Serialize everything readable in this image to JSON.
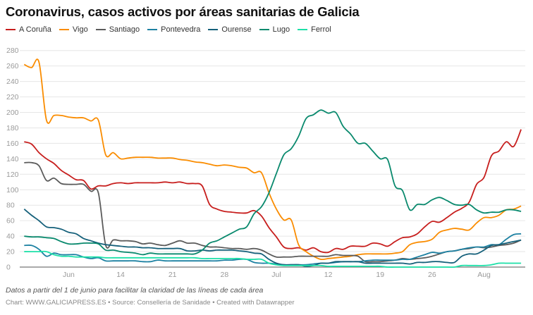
{
  "title": "Coronavirus, casos activos por áreas sanitarias de Galicia",
  "note": "Datos a partir del 1 de junio para facilitar la claridad de las líneas de cada área",
  "source": "Chart: WWW.GALICIAPRESS.ES • Source: Consellería de Sanidade • Created with Datawrapper",
  "chart_data": {
    "type": "line",
    "title": "Coronavirus, casos activos por áreas sanitarias de Galicia",
    "x_start": "2020-06-01",
    "x_end": "2020-08-07",
    "x_interval": "daily",
    "x_ticks": [
      {
        "date": "2020-06-07",
        "label": "Jun"
      },
      {
        "date": "2020-06-14",
        "label": "14"
      },
      {
        "date": "2020-06-21",
        "label": "21"
      },
      {
        "date": "2020-06-28",
        "label": "28"
      },
      {
        "date": "2020-07-05",
        "label": "Jul"
      },
      {
        "date": "2020-07-12",
        "label": "12"
      },
      {
        "date": "2020-07-19",
        "label": "19"
      },
      {
        "date": "2020-07-26",
        "label": "26"
      },
      {
        "date": "2020-08-02",
        "label": "Aug"
      }
    ],
    "y_ticks": [
      0,
      20,
      40,
      60,
      80,
      100,
      120,
      140,
      160,
      180,
      200,
      220,
      240,
      260,
      280
    ],
    "ylim": [
      0,
      280
    ],
    "grid": true,
    "legend_position": "top-left",
    "series": [
      {
        "name": "A Coruña",
        "color": "#c71e1d",
        "values": [
          162,
          159,
          148,
          140,
          134,
          125,
          119,
          113,
          112,
          101,
          105,
          105,
          108,
          109,
          108,
          109,
          109,
          109,
          109,
          110,
          109,
          110,
          108,
          108,
          105,
          81,
          75,
          72,
          71,
          70,
          70,
          73,
          66,
          51,
          39,
          26,
          24,
          25,
          22,
          25,
          20,
          19,
          24,
          23,
          27,
          27,
          27,
          31,
          30,
          27,
          33,
          38,
          39,
          43,
          52,
          59,
          58,
          64,
          71,
          76,
          84,
          107,
          116,
          144,
          150,
          162,
          156,
          178
        ]
      },
      {
        "name": "Vigo",
        "color": "#fa8c00",
        "values": [
          262,
          258,
          265,
          190,
          196,
          196,
          194,
          193,
          193,
          189,
          190,
          145,
          148,
          140,
          141,
          142,
          142,
          142,
          141,
          141,
          141,
          139,
          138,
          136,
          135,
          133,
          131,
          132,
          131,
          129,
          128,
          122,
          122,
          96,
          75,
          61,
          61,
          29,
          20,
          14,
          10,
          11,
          12,
          13,
          14,
          16,
          17,
          17,
          17,
          17,
          18,
          20,
          29,
          32,
          33,
          36,
          45,
          48,
          50,
          49,
          48,
          57,
          64,
          64,
          67,
          74,
          75,
          79
        ]
      },
      {
        "name": "Santiago",
        "color": "#5b5b5b",
        "values": [
          135,
          135,
          131,
          112,
          115,
          108,
          107,
          107,
          107,
          98,
          96,
          28,
          35,
          34,
          34,
          33,
          30,
          31,
          29,
          28,
          31,
          34,
          31,
          31,
          28,
          26,
          26,
          25,
          24,
          24,
          23,
          24,
          22,
          17,
          13,
          13,
          13,
          14,
          14,
          14,
          14,
          14,
          16,
          15,
          15,
          14,
          7,
          7,
          7,
          8,
          9,
          11,
          10,
          11,
          12,
          14,
          17,
          20,
          21,
          23,
          24,
          26,
          25,
          26,
          28,
          29,
          31,
          35
        ]
      },
      {
        "name": "Pontevedra",
        "color": "#1d81a2",
        "values": [
          28,
          28,
          23,
          14,
          18,
          16,
          16,
          16,
          13,
          11,
          12,
          8,
          8,
          8,
          8,
          8,
          7,
          7,
          9,
          8,
          8,
          8,
          8,
          8,
          8,
          8,
          8,
          9,
          9,
          10,
          10,
          6,
          5,
          5,
          4,
          3,
          3,
          3,
          3,
          4,
          5,
          5,
          6,
          7,
          7,
          7,
          8,
          9,
          9,
          9,
          9,
          10,
          10,
          13,
          16,
          19,
          18,
          20,
          21,
          23,
          25,
          26,
          26,
          29,
          29,
          36,
          42,
          43
        ]
      },
      {
        "name": "Ourense",
        "color": "#15607a",
        "values": [
          75,
          67,
          60,
          52,
          51,
          49,
          45,
          43,
          37,
          34,
          31,
          29,
          28,
          27,
          26,
          26,
          25,
          25,
          24,
          24,
          24,
          24,
          21,
          21,
          22,
          21,
          22,
          22,
          22,
          21,
          20,
          18,
          17,
          10,
          5,
          3,
          3,
          3,
          1,
          2,
          5,
          5,
          7,
          7,
          7,
          7,
          5,
          5,
          5,
          5,
          5,
          5,
          4,
          6,
          6,
          7,
          7,
          6,
          6,
          14,
          17,
          17,
          22,
          28,
          29,
          31,
          33,
          35
        ]
      },
      {
        "name": "Lugo",
        "color": "#09896d",
        "values": [
          40,
          39,
          39,
          38,
          37,
          33,
          30,
          30,
          31,
          31,
          30,
          22,
          22,
          20,
          19,
          18,
          16,
          18,
          17,
          17,
          17,
          17,
          17,
          17,
          22,
          31,
          34,
          39,
          44,
          49,
          52,
          69,
          78,
          96,
          121,
          145,
          153,
          169,
          192,
          197,
          203,
          199,
          200,
          182,
          172,
          160,
          160,
          150,
          140,
          139,
          105,
          99,
          74,
          81,
          81,
          87,
          90,
          86,
          81,
          80,
          81,
          74,
          70,
          71,
          71,
          74,
          74,
          72
        ]
      },
      {
        "name": "Ferrol",
        "color": "#1de0a8",
        "values": [
          20,
          20,
          20,
          20,
          16,
          14,
          14,
          13,
          13,
          13,
          13,
          12,
          12,
          12,
          12,
          12,
          12,
          12,
          12,
          12,
          12,
          12,
          12,
          12,
          11,
          11,
          11,
          11,
          11,
          11,
          10,
          10,
          10,
          5,
          3,
          2,
          2,
          2,
          2,
          2,
          2,
          1,
          1,
          1,
          1,
          1,
          1,
          1,
          1,
          0,
          0,
          0,
          0,
          0,
          0,
          0,
          0,
          0,
          0,
          2,
          2,
          2,
          2,
          3,
          5,
          5,
          5,
          5
        ]
      }
    ]
  }
}
